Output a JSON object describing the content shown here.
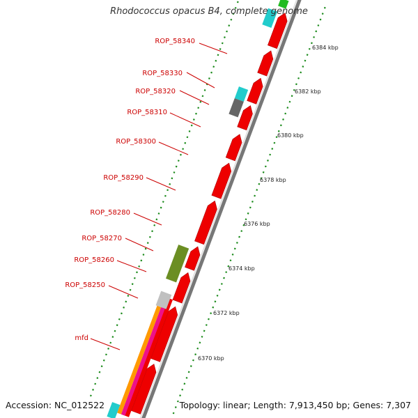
{
  "title": "Rhodococcus opacus B4, complete genome",
  "accession": "Accession: NC_012522",
  "topology": "Topology: linear; Length: 7,913,450 bp; Genes: 7,307",
  "scale_labels": [
    "6384 kbp",
    "6382 kbp",
    "6380 kbp",
    "6378 kbp",
    "6376 kbp",
    "6374 kbp",
    "6372 kbp",
    "6370 kbp"
  ],
  "gene_labels": [
    "ROP_58340",
    "ROP_58330",
    "ROP_58320",
    "ROP_58310",
    "ROP_58300",
    "ROP_58290",
    "ROP_58280",
    "ROP_58270",
    "ROP_58260",
    "ROP_58250",
    "mfd"
  ],
  "colors": {
    "label": "#cc0000",
    "ruler": "#1a8a1a",
    "gene_main": "#ee0000",
    "cyan": "#22cccc",
    "dark_gray": "#666666",
    "olive": "#6b8e23",
    "light_gray": "#c0c0c0",
    "orange": "#ff9900",
    "magenta": "#ee1188",
    "green": "#22bb22",
    "backbone": "#777777"
  }
}
